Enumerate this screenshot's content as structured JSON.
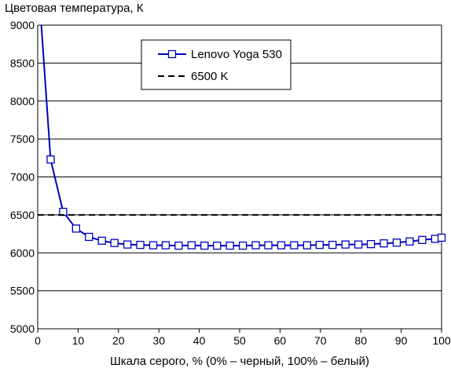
{
  "chart_data": {
    "type": "line",
    "title": "",
    "ylabel": "Цветовая температура, К",
    "xlabel": "Шкала серого, % (0% – черный, 100% – белый)",
    "xlim": [
      0,
      100
    ],
    "ylim": [
      5000,
      9000
    ],
    "xticks": [
      0,
      10,
      20,
      30,
      40,
      50,
      60,
      70,
      80,
      90,
      100
    ],
    "yticks": [
      5000,
      5500,
      6000,
      6500,
      7000,
      7500,
      8000,
      8500,
      9000
    ],
    "grid": "horizontal",
    "legend_position": "top-center",
    "series": [
      {
        "name": "Lenovo Yoga 530",
        "color": "#0000c0",
        "marker": "open-square",
        "line_only_points": [
          {
            "x": 0.9,
            "y": 9000
          }
        ],
        "points": [
          {
            "x": 3.2,
            "y": 7230
          },
          {
            "x": 6.3,
            "y": 6540
          },
          {
            "x": 9.5,
            "y": 6320
          },
          {
            "x": 12.7,
            "y": 6210
          },
          {
            "x": 15.9,
            "y": 6160
          },
          {
            "x": 19.0,
            "y": 6130
          },
          {
            "x": 22.2,
            "y": 6110
          },
          {
            "x": 25.4,
            "y": 6105
          },
          {
            "x": 28.6,
            "y": 6100
          },
          {
            "x": 31.7,
            "y": 6100
          },
          {
            "x": 34.9,
            "y": 6095
          },
          {
            "x": 38.1,
            "y": 6100
          },
          {
            "x": 41.3,
            "y": 6095
          },
          {
            "x": 44.4,
            "y": 6095
          },
          {
            "x": 47.6,
            "y": 6095
          },
          {
            "x": 50.8,
            "y": 6095
          },
          {
            "x": 54.0,
            "y": 6100
          },
          {
            "x": 57.1,
            "y": 6100
          },
          {
            "x": 60.3,
            "y": 6100
          },
          {
            "x": 63.5,
            "y": 6100
          },
          {
            "x": 66.7,
            "y": 6100
          },
          {
            "x": 69.8,
            "y": 6105
          },
          {
            "x": 73.0,
            "y": 6105
          },
          {
            "x": 76.2,
            "y": 6110
          },
          {
            "x": 79.4,
            "y": 6110
          },
          {
            "x": 82.5,
            "y": 6115
          },
          {
            "x": 85.7,
            "y": 6125
          },
          {
            "x": 88.9,
            "y": 6135
          },
          {
            "x": 92.1,
            "y": 6150
          },
          {
            "x": 95.2,
            "y": 6170
          },
          {
            "x": 98.4,
            "y": 6185
          },
          {
            "x": 100.0,
            "y": 6200
          }
        ]
      },
      {
        "name": "6500 K",
        "color": "#000000",
        "dashed": true,
        "reference_y": 6500
      }
    ]
  }
}
